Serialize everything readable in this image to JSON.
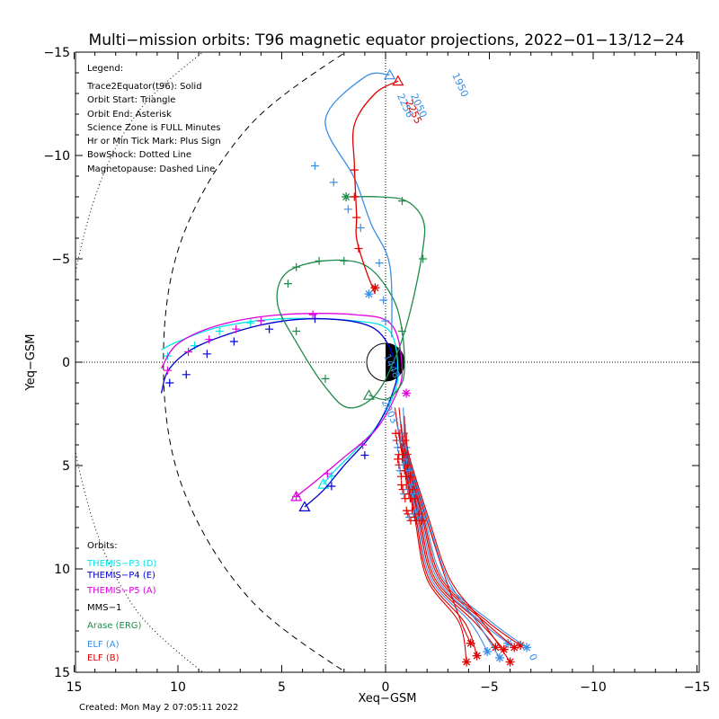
{
  "chart_data": {
    "type": "line",
    "title": "Multi−mission orbits: T96 magnetic equator projections, 2022−01−13/12−24",
    "xlabel": "Xeq−GSM",
    "ylabel": "Yeq−GSM",
    "xlim": [
      15,
      -15
    ],
    "ylim": [
      -15,
      15
    ],
    "x_ticks": [
      "15",
      "10",
      "5",
      "0",
      "−5",
      "−10",
      "−15"
    ],
    "y_ticks": [
      "−15",
      "−10",
      "−5",
      "0",
      "5",
      "10",
      "15"
    ],
    "footer": "Created: Mon May  2 07:05:11 2022",
    "legend_notes": [
      "Legend:",
      "Trace2Equator(t96): Solid",
      "Orbit Start: Triangle",
      "Orbit End: Asterisk",
      "Science Zone is FULL Minutes",
      "Hr or Min Tick Mark: Plus Sign",
      "BowShock: Dotted Line",
      "Magnetopause: Dashed Line"
    ],
    "orbits_title": "Orbits:",
    "orbits_legend": [
      {
        "name": "THEMIS−P3 (D)",
        "color": "#00e5e5"
      },
      {
        "name": "THEMIS−P4 (E)",
        "color": "#0000d0"
      },
      {
        "name": "THEMIS−P5 (A)",
        "color": "#e000e0"
      },
      {
        "name": "MMS−1",
        "color": "#000000"
      },
      {
        "name": "Arase (ERG)",
        "color": "#1e8a4a"
      },
      {
        "name": "ELF (A)",
        "color": "#3a8ee6"
      },
      {
        "name": "ELF (B)",
        "color": "#e00000"
      }
    ],
    "series": [
      {
        "name": "THEMIS−P3 (D)",
        "color": "#00e5e5",
        "points": [
          [
            3.0,
            5.9
          ],
          [
            2.4,
            5.2
          ],
          [
            1.6,
            4.4
          ],
          [
            0.5,
            3.2
          ],
          [
            -0.3,
            1.8
          ],
          [
            -0.6,
            0.5
          ],
          [
            -0.2,
            -1.5
          ],
          [
            1.5,
            -2.0
          ],
          [
            5,
            -2.1
          ],
          [
            8,
            -1.7
          ],
          [
            10,
            -1.0
          ],
          [
            10.8,
            -0.6
          ]
        ],
        "ticks": [
          [
            2.6,
            5.5
          ],
          [
            5,
            -2.1
          ],
          [
            6.5,
            -1.9
          ],
          [
            8,
            -1.5
          ],
          [
            9.2,
            -0.8
          ],
          [
            10.5,
            -0.3
          ]
        ],
        "start": [
          3.0,
          5.9
        ],
        "end": null
      },
      {
        "name": "THEMIS−P4 (E)",
        "color": "#0000d0",
        "points": [
          [
            3.9,
            7.0
          ],
          [
            3.0,
            6.2
          ],
          [
            2.0,
            5.0
          ],
          [
            0.6,
            3.4
          ],
          [
            -0.3,
            1.6
          ],
          [
            -0.5,
            0.2
          ],
          [
            0.5,
            -1.6
          ],
          [
            3,
            -2.1
          ],
          [
            6,
            -1.8
          ],
          [
            9,
            -0.8
          ],
          [
            10.4,
            0.3
          ],
          [
            10.8,
            1.5
          ]
        ],
        "ticks": [
          [
            2.6,
            6.0
          ],
          [
            1.0,
            4.5
          ],
          [
            3.4,
            -2.1
          ],
          [
            5.6,
            -1.6
          ],
          [
            7.3,
            -1.0
          ],
          [
            8.6,
            -0.4
          ],
          [
            9.6,
            0.6
          ],
          [
            10.4,
            1.0
          ]
        ],
        "start": [
          3.9,
          7.0
        ],
        "end": null
      },
      {
        "name": "THEMIS−P5 (A)",
        "color": "#e000e0",
        "points": [
          [
            4.3,
            6.5
          ],
          [
            3.3,
            5.7
          ],
          [
            2.0,
            4.6
          ],
          [
            0.5,
            3.3
          ],
          [
            -0.4,
            1.8
          ],
          [
            -0.8,
            0.4
          ],
          [
            -0.3,
            -1.8
          ],
          [
            1.5,
            -2.3
          ],
          [
            5,
            -2.3
          ],
          [
            8,
            -1.8
          ],
          [
            10,
            -0.9
          ],
          [
            10.8,
            0.3
          ]
        ],
        "ticks": [
          [
            4.3,
            6.5
          ],
          [
            2.8,
            5.4
          ],
          [
            1.1,
            4.0
          ],
          [
            3.5,
            -2.3
          ],
          [
            6,
            -2.0
          ],
          [
            7.2,
            -1.6
          ],
          [
            8.5,
            -1.1
          ],
          [
            9.5,
            -0.5
          ],
          [
            10.5,
            0.4
          ]
        ],
        "start": [
          4.3,
          6.5
        ],
        "end": [
          -1.0,
          1.5
        ]
      },
      {
        "name": "Arase (ERG)",
        "color": "#1e8a4a",
        "points": [
          [
            0.8,
            1.6
          ],
          [
            0,
            1.8
          ],
          [
            -0.6,
            1.3
          ],
          [
            -0.9,
            0.5
          ],
          [
            -0.8,
            -1.5
          ],
          [
            -0.3,
            -3.2
          ],
          [
            1.0,
            -4.7
          ],
          [
            3.0,
            -4.9
          ],
          [
            4.8,
            -4.3
          ],
          [
            5.2,
            -2.8
          ],
          [
            4.2,
            -0.8
          ],
          [
            2.9,
            1.2
          ],
          [
            1.8,
            2.2
          ],
          [
            0.5,
            1.6
          ],
          [
            -0.5,
            -0.3
          ],
          [
            -1.2,
            -2.5
          ],
          [
            -1.8,
            -5.5
          ],
          [
            -1.8,
            -6.9
          ],
          [
            -1.0,
            -7.8
          ],
          [
            0.3,
            -8.0
          ],
          [
            1.9,
            -8.0
          ]
        ],
        "ticks": [
          [
            4.7,
            -3.8
          ],
          [
            4.3,
            -4.6
          ],
          [
            3.2,
            -4.9
          ],
          [
            2.0,
            -4.9
          ],
          [
            4.3,
            -1.5
          ],
          [
            2.9,
            0.8
          ],
          [
            -0.8,
            -1.5
          ],
          [
            -1.8,
            -5.0
          ],
          [
            -0.8,
            -7.8
          ]
        ],
        "start": [
          0.8,
          1.6
        ],
        "end": [
          1.9,
          -8.0
        ]
      },
      {
        "name": "ELF (A)",
        "color": "#3a8ee6",
        "points": [
          [
            -0.3,
            -1.2
          ],
          [
            -0.2,
            -4.7
          ],
          [
            0.7,
            -6.7
          ],
          [
            1.5,
            -8.9
          ],
          [
            2.9,
            -11.7
          ],
          [
            1.0,
            -13.8
          ],
          [
            -0.2,
            -13.9
          ]
        ],
        "ticks": [
          [
            0,
            -2.0
          ],
          [
            0.1,
            -3.0
          ],
          [
            0.3,
            -4.8
          ],
          [
            1.2,
            -6.5
          ],
          [
            1.8,
            -7.4
          ],
          [
            2.5,
            -8.7
          ],
          [
            3.4,
            -9.5
          ]
        ],
        "start": [
          -0.2,
          -13.9
        ],
        "end": [
          0.8,
          -3.3
        ]
      },
      {
        "name": "ELF (B)",
        "color": "#e00000",
        "points": [
          [
            0.5,
            -3.3
          ],
          [
            1.0,
            -4.6
          ],
          [
            1.4,
            -6.0
          ],
          [
            1.4,
            -7.1
          ],
          [
            1.5,
            -9.5
          ],
          [
            1.5,
            -11.5
          ],
          [
            0.5,
            -13.0
          ],
          [
            -0.6,
            -13.6
          ]
        ],
        "ticks": [
          [
            1.5,
            -9.3
          ],
          [
            1.5,
            -8.0
          ],
          [
            1.4,
            -7.0
          ],
          [
            1.3,
            -5.5
          ]
        ],
        "start": [
          -0.6,
          -13.6
        ],
        "end": [
          0.5,
          -3.6
        ]
      }
    ],
    "tail_a_color": "#3a8ee6",
    "tail_b_color": "#e00000",
    "labels": [
      {
        "text": "2050",
        "x": -1.2,
        "y": -12.9,
        "color": "#3a8ee6",
        "rotate": 65
      },
      {
        "text": "2256",
        "x": -0.55,
        "y": -12.9,
        "color": "#3a8ee6",
        "rotate": 65
      },
      {
        "text": "2255",
        "x": -0.95,
        "y": -12.6,
        "color": "#e00000",
        "rotate": 65
      },
      {
        "text": "1950",
        "x": -3.2,
        "y": -13.9,
        "color": "#3a8ee6",
        "rotate": 65
      },
      {
        "text": "2003",
        "x": 0.2,
        "y": 1.9,
        "color": "#3a8ee6",
        "rotate": 65
      },
      {
        "text": "1448",
        "x": 0.1,
        "y": -0.3,
        "color": "#3a8ee6",
        "rotate": 65
      },
      {
        "text": "0",
        "x": -6.9,
        "y": 14.2,
        "color": "#3a8ee6",
        "rotate": 65
      }
    ]
  }
}
